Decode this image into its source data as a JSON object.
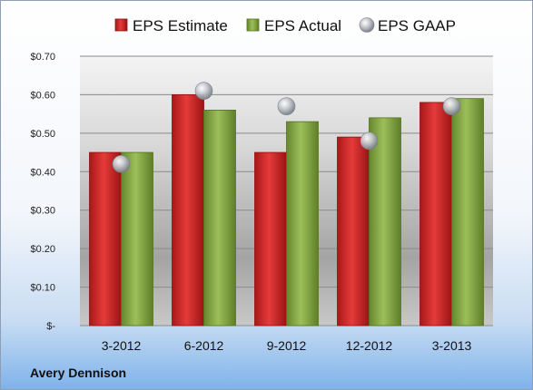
{
  "company": "Avery Dennison",
  "chart_data": {
    "type": "bar",
    "categories": [
      "3-2012",
      "6-2012",
      "9-2012",
      "12-2012",
      "3-2013"
    ],
    "series": [
      {
        "name": "EPS Estimate",
        "kind": "bar",
        "color": "#d42a2a",
        "values": [
          0.45,
          0.6,
          0.45,
          0.49,
          0.58
        ]
      },
      {
        "name": "EPS Actual",
        "kind": "bar",
        "color": "#8aae45",
        "values": [
          0.45,
          0.56,
          0.53,
          0.54,
          0.59
        ]
      },
      {
        "name": "EPS GAAP",
        "kind": "marker",
        "color": "#b8bcc4",
        "values": [
          0.42,
          0.61,
          0.57,
          0.48,
          0.57
        ]
      }
    ],
    "y_ticks": [
      0,
      0.1,
      0.2,
      0.3,
      0.4,
      0.5,
      0.6,
      0.7
    ],
    "y_tick_labels": [
      "$-",
      "$0.10",
      "$0.20",
      "$0.30",
      "$0.40",
      "$0.50",
      "$0.60",
      "$0.70"
    ],
    "ylim": [
      0,
      0.7
    ],
    "legend_position": "top",
    "grid": true
  }
}
